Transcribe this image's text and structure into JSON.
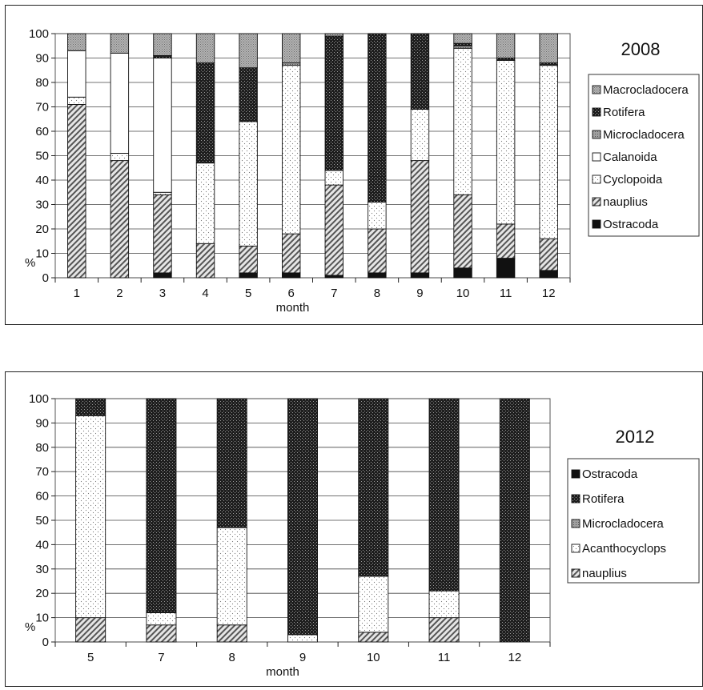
{
  "colors": {
    "Macrocladocera": "#9a9a9a",
    "Rotifera": "#303030",
    "Microcladocera": "#8c8c8c",
    "Calanoida": "#ffffff",
    "Cyclopoida": "#f2f2f2",
    "Acanthocyclops": "#f2f2f2",
    "nauplius": "#bdbdbd",
    "Ostracoda": "#111111"
  },
  "chart_data": [
    {
      "type": "bar",
      "stacked": true,
      "title": "2008",
      "xlabel": "month",
      "ylabel": "%",
      "ylim": [
        0,
        100
      ],
      "yticks": [
        0,
        10,
        20,
        30,
        40,
        50,
        60,
        70,
        80,
        90,
        100
      ],
      "grid": true,
      "legend_position": "right",
      "legend": [
        "Macrocladocera",
        "Rotifera",
        "Microcladocera",
        "Calanoida",
        "Cyclopoida",
        "nauplius",
        "Ostracoda"
      ],
      "categories": [
        "1",
        "2",
        "3",
        "4",
        "5",
        "6",
        "7",
        "8",
        "9",
        "10",
        "11",
        "12"
      ],
      "series": [
        {
          "name": "Ostracoda",
          "values": [
            0,
            0,
            2,
            0,
            2,
            2,
            1,
            2,
            2,
            4,
            8,
            3
          ]
        },
        {
          "name": "nauplius",
          "values": [
            71,
            48,
            32,
            14,
            11,
            16,
            37,
            18,
            46,
            30,
            14,
            13
          ]
        },
        {
          "name": "Cyclopoida",
          "values": [
            3,
            3,
            1,
            33,
            51,
            69,
            6,
            11,
            21,
            60,
            67,
            71
          ]
        },
        {
          "name": "Calanoida",
          "values": [
            19,
            41,
            55,
            0,
            0,
            0,
            0,
            0,
            0,
            0,
            0,
            0
          ]
        },
        {
          "name": "Microcladocera",
          "values": [
            0,
            0,
            0,
            0,
            0,
            1,
            0,
            0,
            0,
            1,
            0,
            0
          ]
        },
        {
          "name": "Rotifera",
          "values": [
            0,
            0,
            1,
            41,
            22,
            0,
            55,
            69,
            31,
            1,
            1,
            1
          ]
        },
        {
          "name": "Macrocladocera",
          "values": [
            7,
            8,
            9,
            12,
            14,
            12,
            1,
            0,
            0,
            4,
            10,
            12
          ]
        }
      ]
    },
    {
      "type": "bar",
      "stacked": true,
      "title": "2012",
      "xlabel": "month",
      "ylabel": "%",
      "ylim": [
        0,
        100
      ],
      "yticks": [
        0,
        10,
        20,
        30,
        40,
        50,
        60,
        70,
        80,
        90,
        100
      ],
      "grid": true,
      "legend_position": "right",
      "legend": [
        "Ostracoda",
        "Rotifera",
        "Microcladocera",
        "Acanthocyclops",
        "nauplius"
      ],
      "categories": [
        "5",
        "7",
        "8",
        "9",
        "10",
        "11",
        "12"
      ],
      "series": [
        {
          "name": "nauplius",
          "values": [
            10,
            7,
            7,
            0,
            4,
            10,
            0
          ]
        },
        {
          "name": "Acanthocyclops",
          "values": [
            83,
            5,
            40,
            3,
            23,
            11,
            0
          ]
        },
        {
          "name": "Microcladocera",
          "values": [
            0,
            0,
            0,
            0,
            0,
            0,
            0
          ]
        },
        {
          "name": "Rotifera",
          "values": [
            7,
            88,
            53,
            97,
            73,
            79,
            100
          ]
        },
        {
          "name": "Ostracoda",
          "values": [
            0,
            0,
            0,
            0,
            0,
            0,
            0
          ]
        }
      ]
    }
  ]
}
